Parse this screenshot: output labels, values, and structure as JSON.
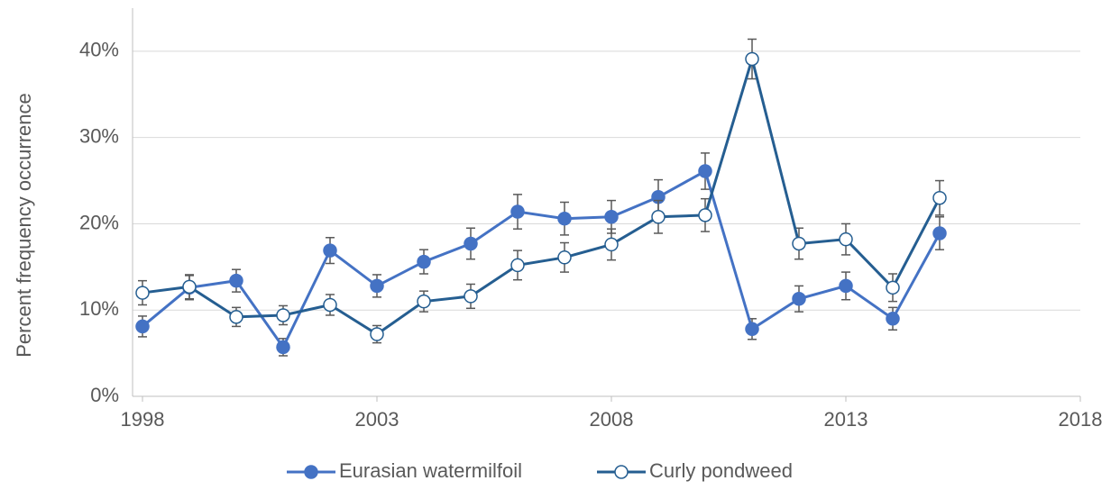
{
  "chart_data": {
    "type": "line",
    "y_label": "Percent frequency occurrence",
    "x": [
      1998,
      1999,
      2000,
      2001,
      2002,
      2003,
      2004,
      2005,
      2006,
      2007,
      2008,
      2009,
      2010,
      2011,
      2012,
      2013,
      2014,
      2015
    ],
    "series": [
      {
        "name": "Eurasian watermilfoil",
        "color": "#4472c4",
        "marker": "filled",
        "values": [
          8.1,
          12.6,
          13.4,
          5.7,
          16.9,
          12.8,
          15.6,
          17.7,
          21.4,
          20.6,
          20.8,
          23.1,
          26.1,
          7.8,
          11.3,
          12.8,
          9.0,
          18.9
        ],
        "errors": [
          1.2,
          1.4,
          1.3,
          1.0,
          1.5,
          1.3,
          1.4,
          1.8,
          2.0,
          1.9,
          1.9,
          2.0,
          2.1,
          1.2,
          1.5,
          1.6,
          1.3,
          1.9
        ]
      },
      {
        "name": "Curly pondweed",
        "color": "#255e91",
        "marker": "open",
        "values": [
          12.0,
          12.7,
          9.2,
          9.4,
          10.6,
          7.2,
          11.0,
          11.6,
          15.2,
          16.1,
          17.6,
          20.8,
          21.0,
          39.1,
          17.7,
          18.2,
          12.6,
          23.0
        ],
        "errors": [
          1.4,
          1.4,
          1.1,
          1.1,
          1.2,
          1.0,
          1.2,
          1.4,
          1.7,
          1.7,
          1.8,
          1.9,
          1.9,
          2.3,
          1.8,
          1.8,
          1.6,
          2.0
        ]
      }
    ],
    "error_color": "#595959",
    "xlim": [
      1998,
      2018
    ],
    "xticks": [
      1998,
      2003,
      2008,
      2013,
      2018
    ],
    "ylim": [
      0,
      45
    ],
    "yticks": [
      {
        "value": 0,
        "label": "0%"
      },
      {
        "value": 10,
        "label": "10%"
      },
      {
        "value": 20,
        "label": "20%"
      },
      {
        "value": 30,
        "label": "30%"
      },
      {
        "value": 40,
        "label": "40%"
      }
    ],
    "grid": true,
    "legend": "bottom"
  }
}
